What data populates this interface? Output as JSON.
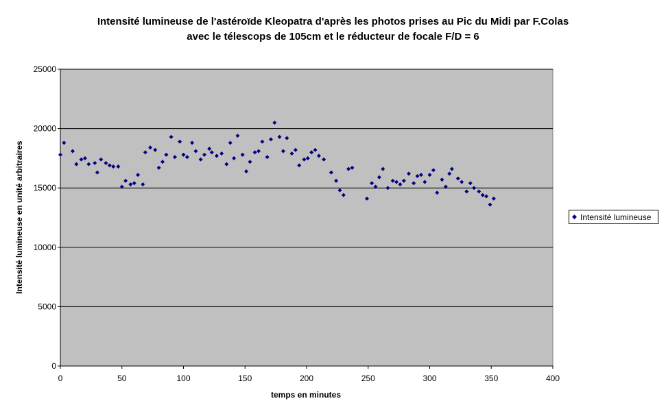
{
  "chart_data": {
    "type": "scatter",
    "title": "Intensité lumineuse de l'astéroïde Kleopatra d'après les photos prises au Pic du Midi par F.Colas",
    "subtitle": "avec le télescops de 105cm et le réducteur de focale F/D = 6",
    "xlabel": "temps en minutes",
    "ylabel": "Intensité lumineuse en unité arbitraires",
    "xlim": [
      0,
      400
    ],
    "ylim": [
      0,
      25000
    ],
    "xticks": [
      0,
      50,
      100,
      150,
      200,
      250,
      300,
      350,
      400
    ],
    "yticks": [
      0,
      5000,
      10000,
      15000,
      20000,
      25000
    ],
    "grid": "horizontal",
    "legend_position": "right",
    "plot_background": "#c0c0c0",
    "marker_color": "#000080",
    "series": [
      {
        "name": "Intensité lumineuse",
        "x": [
          0,
          3,
          10,
          13,
          17,
          20,
          23,
          28,
          30,
          33,
          37,
          40,
          43,
          47,
          50,
          53,
          57,
          60,
          63,
          67,
          69,
          73,
          77,
          80,
          83,
          86,
          90,
          93,
          97,
          100,
          103,
          107,
          110,
          114,
          117,
          121,
          123,
          127,
          131,
          135,
          138,
          141,
          144,
          148,
          151,
          154,
          158,
          161,
          164,
          168,
          171,
          174,
          178,
          181,
          184,
          188,
          191,
          194,
          198,
          201,
          204,
          207,
          210,
          214,
          220,
          224,
          227,
          230,
          234,
          237,
          249,
          253,
          256,
          259,
          262,
          266,
          270,
          273,
          276,
          279,
          283,
          287,
          290,
          293,
          296,
          300,
          303,
          306,
          310,
          313,
          316,
          318,
          323,
          326,
          330,
          333,
          336,
          340,
          343,
          346,
          349,
          352
        ],
        "y": [
          17800,
          18800,
          18100,
          17000,
          17400,
          17500,
          17000,
          17100,
          16300,
          17400,
          17100,
          16900,
          16800,
          16800,
          15100,
          15600,
          15300,
          15400,
          16100,
          15300,
          18000,
          18400,
          18200,
          16700,
          17200,
          17800,
          19300,
          17600,
          18900,
          17800,
          17600,
          18800,
          18100,
          17400,
          17800,
          18300,
          18000,
          17700,
          17900,
          17000,
          18800,
          17500,
          19400,
          17800,
          16400,
          17200,
          18000,
          18100,
          18900,
          17600,
          19100,
          20500,
          19300,
          18100,
          19200,
          17900,
          18200,
          16900,
          17400,
          17500,
          18000,
          18200,
          17700,
          17400,
          16300,
          15600,
          14800,
          14400,
          16600,
          16700,
          14100,
          15400,
          15100,
          15900,
          16600,
          15000,
          15600,
          15500,
          15300,
          15600,
          16200,
          15400,
          16000,
          16100,
          15500,
          16100,
          16500,
          14600,
          15700,
          15100,
          16200,
          16600,
          15800,
          15500,
          14700,
          15400,
          15000,
          14700,
          14400,
          14300,
          13600,
          14100
        ]
      }
    ]
  }
}
